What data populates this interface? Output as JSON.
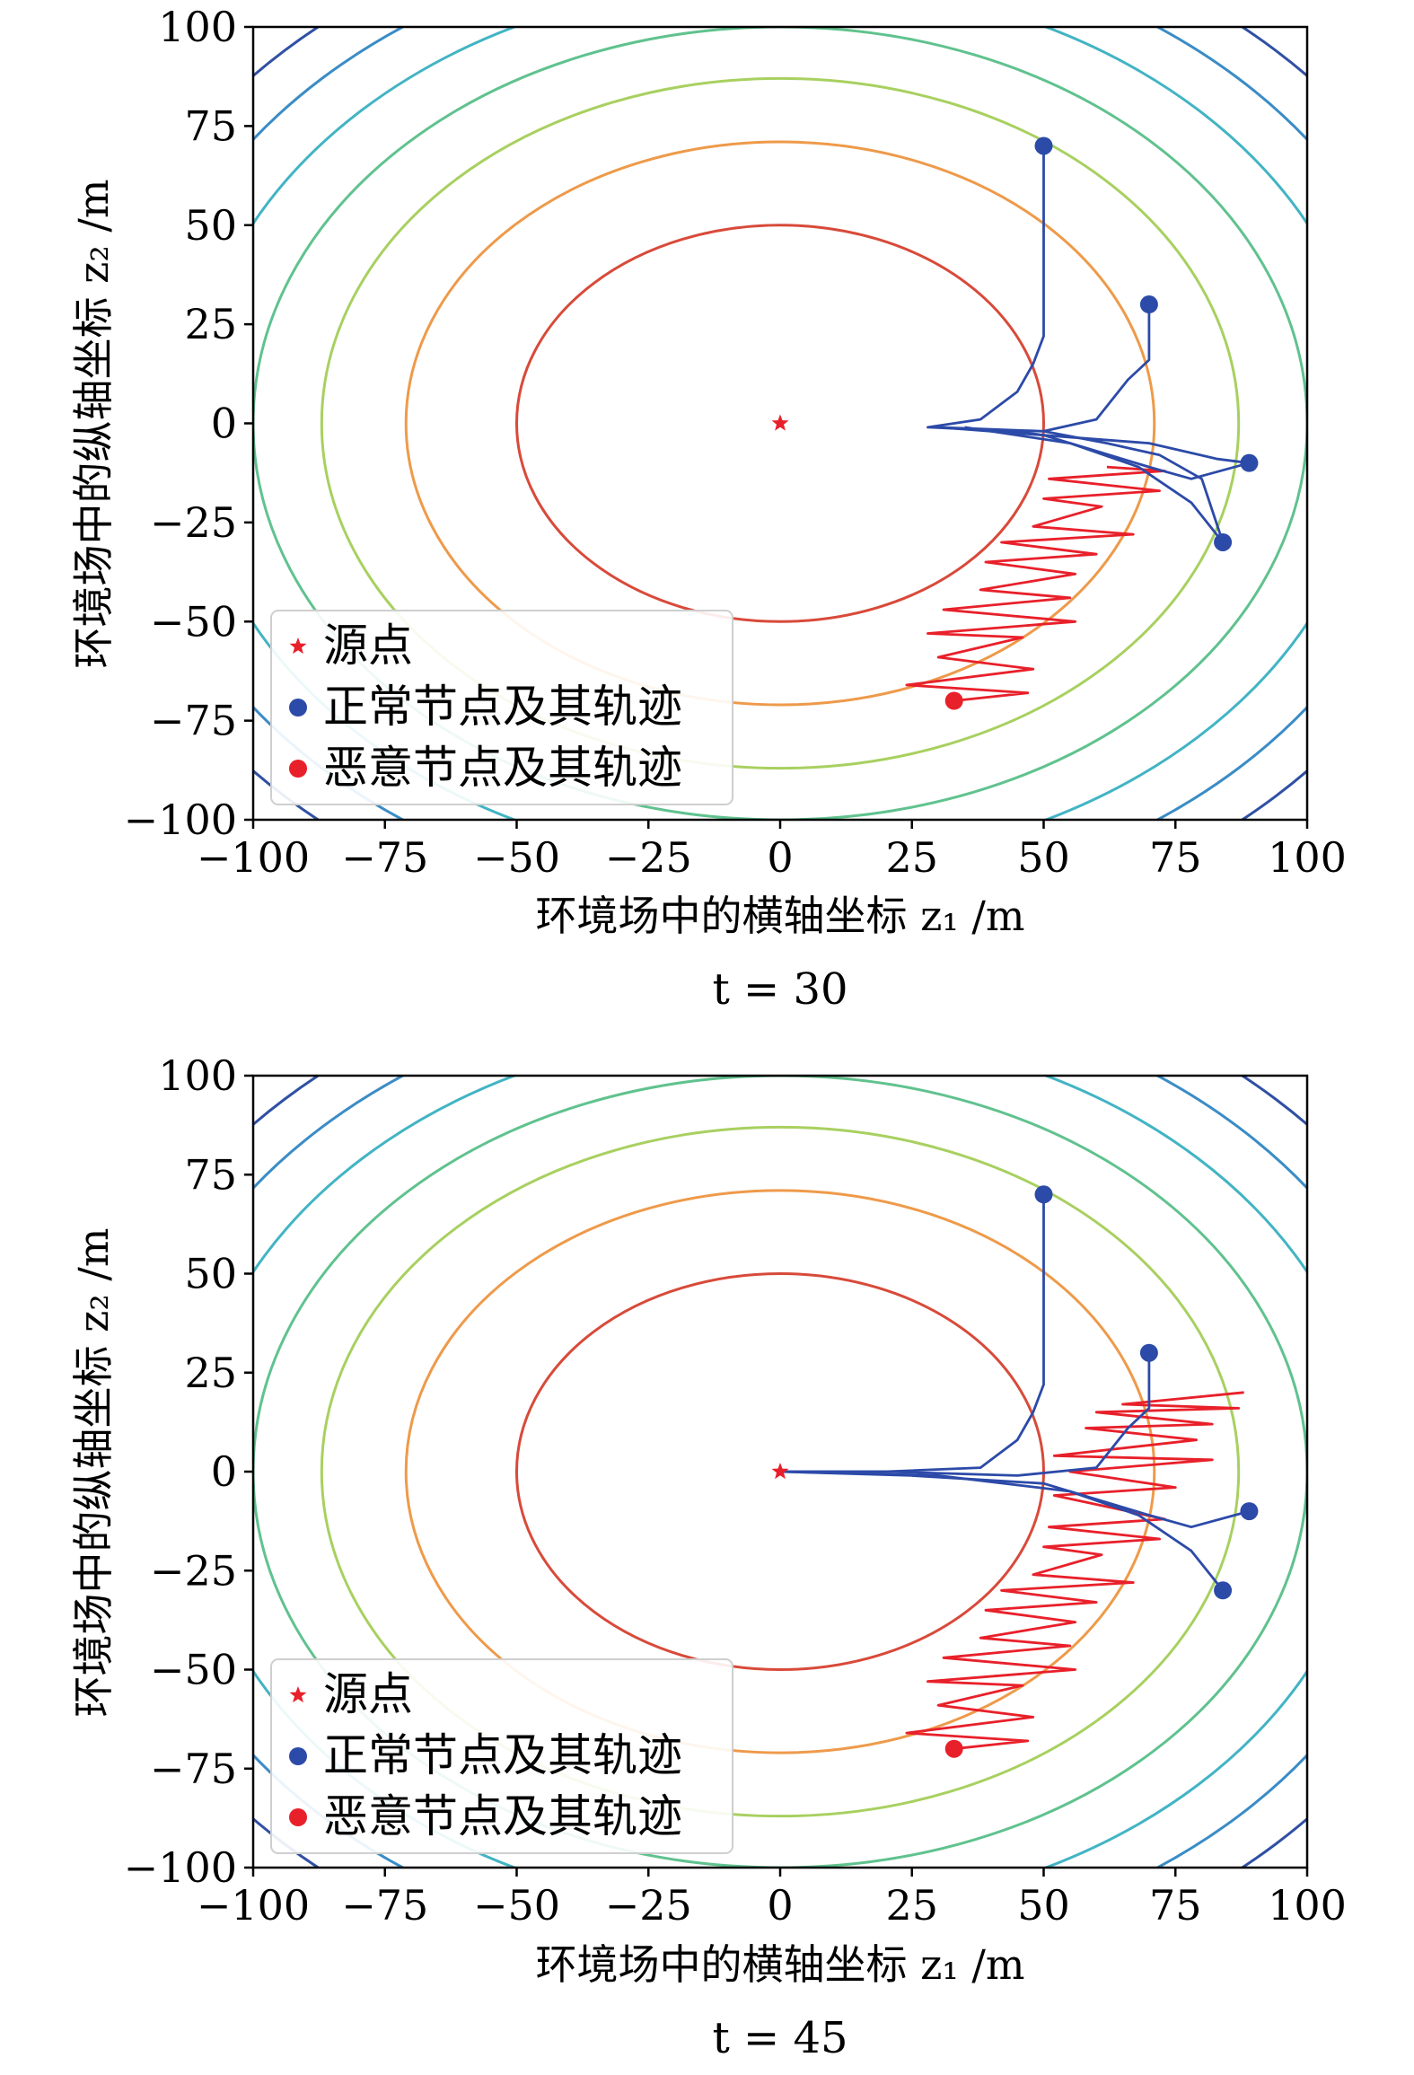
{
  "chart_data": [
    {
      "type": "contour-trajectory",
      "caption": "t = 30",
      "xlabel": "环境场中的横轴坐标 z₁ /m",
      "ylabel": "环境场中的纵轴坐标 z₂ /m",
      "xlim": [
        -100,
        100
      ],
      "ylim": [
        -100,
        100
      ],
      "xticks": [
        -100,
        -75,
        -50,
        -25,
        0,
        25,
        50,
        75,
        100
      ],
      "yticks": [
        -100,
        -75,
        -50,
        -25,
        0,
        25,
        50,
        75,
        100
      ],
      "legend": {
        "position": "lower-left",
        "entries": [
          {
            "label": "源点",
            "marker": "star",
            "color": "#e8202a"
          },
          {
            "label": "正常节点及其轨迹",
            "marker": "circle",
            "color": "#2c4aa8"
          },
          {
            "label": "恶意节点及其轨迹",
            "marker": "circle",
            "color": "#e8202a"
          }
        ]
      },
      "contours": [
        {
          "a": 50,
          "b": 50,
          "color": "#d84a3a"
        },
        {
          "a": 71,
          "b": 71,
          "color": "#ee9a4a"
        },
        {
          "a": 87,
          "b": 87,
          "color": "#a8d060"
        },
        {
          "a": 100,
          "b": 100,
          "color": "#60c28e"
        },
        {
          "a": 112,
          "b": 112,
          "color": "#42b4c4"
        },
        {
          "a": 123,
          "b": 123,
          "color": "#3a8cc6"
        },
        {
          "a": 133,
          "b": 133,
          "color": "#3050a4"
        }
      ],
      "source": {
        "x": 0,
        "y": 0
      },
      "normal_nodes": [
        {
          "start": [
            50,
            70
          ],
          "path": [
            [
              50,
              70
            ],
            [
              50,
              22
            ],
            [
              48,
              15
            ],
            [
              45,
              8
            ],
            [
              38,
              1
            ],
            [
              28,
              -1
            ],
            [
              45,
              -2
            ],
            [
              50,
              -3
            ],
            [
              60,
              -4
            ],
            [
              70,
              -5
            ],
            [
              83,
              -9
            ],
            [
              89,
              -10
            ]
          ]
        },
        {
          "start": [
            70,
            30
          ],
          "path": [
            [
              70,
              30
            ],
            [
              70,
              16
            ],
            [
              66,
              11
            ],
            [
              60,
              1
            ],
            [
              50,
              -2
            ],
            [
              30,
              -1
            ],
            [
              50,
              -2
            ],
            [
              62,
              -5
            ],
            [
              72,
              -8
            ],
            [
              80,
              -14
            ],
            [
              84,
              -30
            ]
          ]
        },
        {
          "start": [
            89,
            -10
          ],
          "path": [
            [
              89,
              -10
            ],
            [
              78,
              -14
            ],
            [
              70,
              -11
            ],
            [
              60,
              -7
            ],
            [
              50,
              -3
            ],
            [
              30,
              -1
            ]
          ]
        },
        {
          "start": [
            84,
            -30
          ],
          "path": [
            [
              84,
              -30
            ],
            [
              78,
              -20
            ],
            [
              68,
              -11
            ],
            [
              55,
              -5
            ],
            [
              35,
              -1
            ]
          ]
        }
      ],
      "malicious_node": {
        "start": [
          33,
          -70
        ],
        "path": [
          [
            33,
            -70
          ],
          [
            47,
            -68
          ],
          [
            24,
            -66
          ],
          [
            48,
            -62
          ],
          [
            30,
            -59
          ],
          [
            46,
            -54
          ],
          [
            28,
            -53
          ],
          [
            56,
            -50
          ],
          [
            31,
            -47
          ],
          [
            55,
            -44
          ],
          [
            38,
            -42
          ],
          [
            56,
            -38
          ],
          [
            39,
            -35
          ],
          [
            60,
            -33
          ],
          [
            42,
            -30
          ],
          [
            67,
            -28
          ],
          [
            48,
            -26
          ],
          [
            61,
            -21
          ],
          [
            50,
            -19
          ],
          [
            72,
            -17
          ],
          [
            51,
            -14
          ],
          [
            73,
            -12
          ],
          [
            62,
            -11
          ]
        ]
      }
    },
    {
      "type": "contour-trajectory",
      "caption": "t = 45",
      "xlabel": "环境场中的横轴坐标 z₁ /m",
      "ylabel": "环境场中的纵轴坐标 z₂ /m",
      "xlim": [
        -100,
        100
      ],
      "ylim": [
        -100,
        100
      ],
      "xticks": [
        -100,
        -75,
        -50,
        -25,
        0,
        25,
        50,
        75,
        100
      ],
      "yticks": [
        -100,
        -75,
        -50,
        -25,
        0,
        25,
        50,
        75,
        100
      ],
      "legend": {
        "position": "lower-left",
        "entries": [
          {
            "label": "源点",
            "marker": "star",
            "color": "#e8202a"
          },
          {
            "label": "正常节点及其轨迹",
            "marker": "circle",
            "color": "#2c4aa8"
          },
          {
            "label": "恶意节点及其轨迹",
            "marker": "circle",
            "color": "#e8202a"
          }
        ]
      },
      "contours": [
        {
          "a": 50,
          "b": 50,
          "color": "#d84a3a"
        },
        {
          "a": 71,
          "b": 71,
          "color": "#ee9a4a"
        },
        {
          "a": 87,
          "b": 87,
          "color": "#a8d060"
        },
        {
          "a": 100,
          "b": 100,
          "color": "#60c28e"
        },
        {
          "a": 112,
          "b": 112,
          "color": "#42b4c4"
        },
        {
          "a": 123,
          "b": 123,
          "color": "#3a8cc6"
        },
        {
          "a": 133,
          "b": 133,
          "color": "#3050a4"
        }
      ],
      "source": {
        "x": 0,
        "y": 0
      },
      "normal_nodes": [
        {
          "start": [
            50,
            70
          ],
          "path": [
            [
              50,
              70
            ],
            [
              50,
              22
            ],
            [
              48,
              15
            ],
            [
              45,
              8
            ],
            [
              38,
              1
            ],
            [
              20,
              0
            ],
            [
              0,
              0
            ]
          ]
        },
        {
          "start": [
            70,
            30
          ],
          "path": [
            [
              70,
              30
            ],
            [
              70,
              16
            ],
            [
              66,
              11
            ],
            [
              60,
              1
            ],
            [
              45,
              -1
            ],
            [
              20,
              0
            ],
            [
              0,
              0
            ]
          ]
        },
        {
          "start": [
            89,
            -10
          ],
          "path": [
            [
              89,
              -10
            ],
            [
              78,
              -14
            ],
            [
              70,
              -11
            ],
            [
              60,
              -7
            ],
            [
              50,
              -3
            ],
            [
              25,
              -1
            ],
            [
              0,
              0
            ]
          ]
        },
        {
          "start": [
            84,
            -30
          ],
          "path": [
            [
              84,
              -30
            ],
            [
              78,
              -20
            ],
            [
              68,
              -11
            ],
            [
              55,
              -5
            ],
            [
              30,
              -1
            ],
            [
              0,
              0
            ]
          ]
        }
      ],
      "malicious_node": {
        "start": [
          33,
          -70
        ],
        "path": [
          [
            33,
            -70
          ],
          [
            47,
            -68
          ],
          [
            24,
            -66
          ],
          [
            48,
            -62
          ],
          [
            30,
            -59
          ],
          [
            46,
            -54
          ],
          [
            28,
            -53
          ],
          [
            56,
            -50
          ],
          [
            31,
            -47
          ],
          [
            55,
            -44
          ],
          [
            38,
            -42
          ],
          [
            56,
            -38
          ],
          [
            39,
            -35
          ],
          [
            60,
            -33
          ],
          [
            42,
            -30
          ],
          [
            67,
            -28
          ],
          [
            48,
            -26
          ],
          [
            61,
            -21
          ],
          [
            50,
            -19
          ],
          [
            72,
            -17
          ],
          [
            51,
            -14
          ],
          [
            73,
            -12
          ],
          [
            52,
            -6
          ],
          [
            75,
            -4
          ],
          [
            55,
            0
          ],
          [
            82,
            3
          ],
          [
            52,
            4
          ],
          [
            79,
            8
          ],
          [
            58,
            11
          ],
          [
            82,
            12
          ],
          [
            60,
            15
          ],
          [
            87,
            16
          ],
          [
            65,
            17
          ],
          [
            88,
            20
          ]
        ]
      }
    }
  ]
}
